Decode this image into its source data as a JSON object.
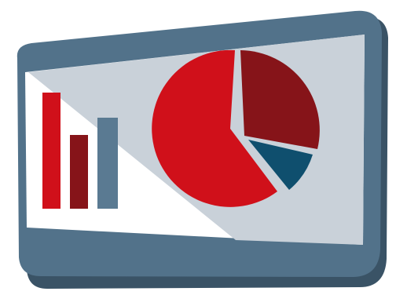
{
  "icon": {
    "name": "presentation-screen-icon",
    "colors": {
      "frame": "#52728a",
      "frame_shadow": "#3a5366",
      "screen_white": "#ffffff",
      "screen_gray": "#c9d1d9",
      "accent_red": "#d0101a",
      "dark_red": "#861419",
      "steel_blue": "#5a7a92",
      "teal": "#0f4f6e"
    },
    "bar_levels": [
      0.85,
      0.58,
      0.68
    ],
    "pie_slices": [
      {
        "name": "large-red",
        "share": 0.63
      },
      {
        "name": "dark-red",
        "share": 0.28
      },
      {
        "name": "teal",
        "share": 0.09
      }
    ]
  }
}
